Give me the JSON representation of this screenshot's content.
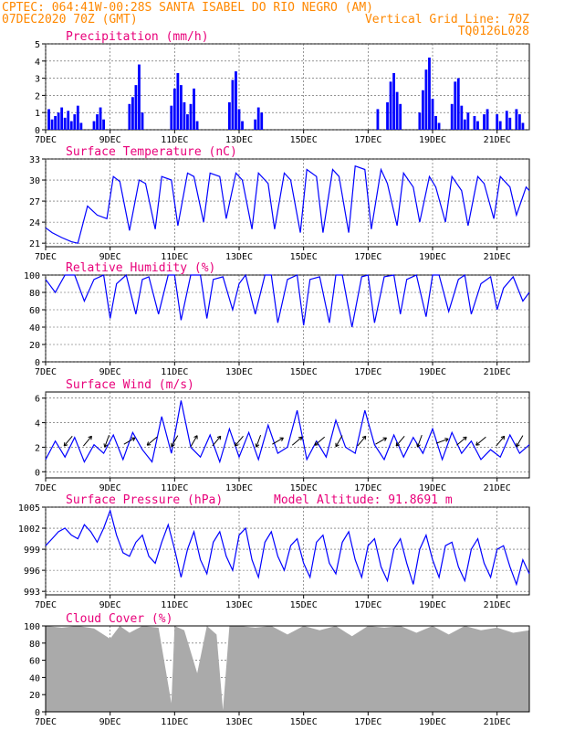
{
  "header": {
    "line1": "CPTEC:   064:41W-00:28S  SANTA ISABEL DO RIO NEGRO (AM)",
    "line2_left": "07DEC2020 70Z (GMT)",
    "line2_right": "Vertical Grid Line: 70Z",
    "line3_right": "TQ0126L028"
  },
  "colors": {
    "header": "#ff8800",
    "panel_title": "#e8007a",
    "series": "#0000ff",
    "bars": "#0000ff",
    "cloud": "#aaaaaa",
    "grid": "#555555"
  },
  "x_axis": {
    "ticks": [
      "7DEC",
      "9DEC",
      "11DEC",
      "13DEC",
      "15DEC",
      "17DEC",
      "19DEC",
      "21DEC"
    ],
    "day_start": 7,
    "day_end": 22
  },
  "chart_data": [
    {
      "type": "bar",
      "title": "Precipitation (mm/h)",
      "ylim": [
        0,
        5
      ],
      "yticks": [
        "0",
        "1",
        "2",
        "3",
        "4",
        "5"
      ],
      "x": [
        7.1,
        7.2,
        7.3,
        7.4,
        7.5,
        7.6,
        7.7,
        7.8,
        7.9,
        8.0,
        8.1,
        8.5,
        8.6,
        8.7,
        8.8,
        9.6,
        9.7,
        9.8,
        9.9,
        10.0,
        10.9,
        11.0,
        11.1,
        11.2,
        11.3,
        11.4,
        11.5,
        11.6,
        11.7,
        12.7,
        12.8,
        12.9,
        13.0,
        13.1,
        13.5,
        13.6,
        13.7,
        17.3,
        17.6,
        17.7,
        17.8,
        17.9,
        18.0,
        18.6,
        18.7,
        18.8,
        18.9,
        19.0,
        19.1,
        19.2,
        19.6,
        19.7,
        19.8,
        19.9,
        20.0,
        20.1,
        20.3,
        20.4,
        20.6,
        20.7,
        21.0,
        21.1,
        21.3,
        21.4,
        21.6,
        21.7,
        21.8
      ],
      "values": [
        1.2,
        0.6,
        0.8,
        1.0,
        1.3,
        0.7,
        1.1,
        0.5,
        0.9,
        1.4,
        0.4,
        0.5,
        0.9,
        1.3,
        0.6,
        1.5,
        1.9,
        2.6,
        3.8,
        1.0,
        1.4,
        2.4,
        3.3,
        2.6,
        1.6,
        0.9,
        1.5,
        2.4,
        0.5,
        1.6,
        2.9,
        3.4,
        1.2,
        0.5,
        0.6,
        1.3,
        1.0,
        1.2,
        1.6,
        2.8,
        3.3,
        2.2,
        1.5,
        1.0,
        2.3,
        3.5,
        4.2,
        1.8,
        0.8,
        0.4,
        1.5,
        2.8,
        3.0,
        1.4,
        0.6,
        1.0,
        0.8,
        0.5,
        0.9,
        1.2,
        0.9,
        0.5,
        1.1,
        0.7,
        1.2,
        0.9,
        0.4
      ]
    },
    {
      "type": "line",
      "title": "Surface Temperature (nC)",
      "ylim": [
        20.5,
        33
      ],
      "yticks": [
        "21",
        "24",
        "27",
        "30",
        "33"
      ],
      "x": [
        7.0,
        7.2,
        7.5,
        7.8,
        8.0,
        8.3,
        8.6,
        8.9,
        9.1,
        9.3,
        9.6,
        9.9,
        10.1,
        10.4,
        10.6,
        10.9,
        11.1,
        11.4,
        11.6,
        11.9,
        12.1,
        12.4,
        12.6,
        12.9,
        13.1,
        13.4,
        13.6,
        13.9,
        14.1,
        14.4,
        14.6,
        14.9,
        15.1,
        15.4,
        15.6,
        15.9,
        16.1,
        16.4,
        16.6,
        16.9,
        17.1,
        17.4,
        17.6,
        17.9,
        18.1,
        18.4,
        18.6,
        18.9,
        19.1,
        19.4,
        19.6,
        19.9,
        20.1,
        20.4,
        20.6,
        20.9,
        21.1,
        21.4,
        21.6,
        21.9,
        22.0
      ],
      "values": [
        23.2,
        22.5,
        21.8,
        21.2,
        21.0,
        26.3,
        25.0,
        24.5,
        30.5,
        29.8,
        22.8,
        30.0,
        29.5,
        23.0,
        30.5,
        30.0,
        23.5,
        31.0,
        30.5,
        24.0,
        31.0,
        30.5,
        24.5,
        31.0,
        30.0,
        23.0,
        31.0,
        29.5,
        23.0,
        31.0,
        30.0,
        22.5,
        31.5,
        30.5,
        22.5,
        31.5,
        30.5,
        22.5,
        32.0,
        31.5,
        23.0,
        31.5,
        29.5,
        23.5,
        31.0,
        29.0,
        24.0,
        30.5,
        29.0,
        24.0,
        30.5,
        28.5,
        23.5,
        30.5,
        29.5,
        24.5,
        30.5,
        29.0,
        25.0,
        29.0,
        28.5
      ]
    },
    {
      "type": "line",
      "title": "Relative Humidity (%)",
      "ylim": [
        0,
        100
      ],
      "yticks": [
        "0",
        "20",
        "40",
        "60",
        "80",
        "100"
      ],
      "x": [
        7.0,
        7.3,
        7.6,
        7.9,
        8.2,
        8.5,
        8.8,
        9.0,
        9.2,
        9.5,
        9.8,
        10.0,
        10.2,
        10.5,
        10.8,
        11.0,
        11.2,
        11.5,
        11.8,
        12.0,
        12.2,
        12.5,
        12.8,
        13.0,
        13.2,
        13.5,
        13.8,
        14.0,
        14.2,
        14.5,
        14.8,
        15.0,
        15.2,
        15.5,
        15.8,
        16.0,
        16.2,
        16.5,
        16.8,
        17.0,
        17.2,
        17.5,
        17.8,
        18.0,
        18.2,
        18.5,
        18.8,
        19.0,
        19.2,
        19.5,
        19.8,
        20.0,
        20.2,
        20.5,
        20.8,
        21.0,
        21.2,
        21.5,
        21.8,
        22.0
      ],
      "values": [
        95,
        80,
        100,
        100,
        70,
        95,
        100,
        50,
        90,
        100,
        55,
        95,
        98,
        55,
        100,
        100,
        48,
        100,
        100,
        50,
        95,
        98,
        60,
        90,
        100,
        55,
        100,
        100,
        45,
        95,
        100,
        42,
        95,
        98,
        45,
        100,
        100,
        40,
        98,
        100,
        45,
        98,
        100,
        55,
        95,
        100,
        52,
        100,
        100,
        58,
        95,
        100,
        55,
        90,
        98,
        60,
        85,
        98,
        70,
        80
      ]
    },
    {
      "type": "line",
      "title": "Surface Wind (m/s)",
      "ylim": [
        -0.5,
        6.5
      ],
      "yticks": [
        "0",
        "2",
        "4",
        "6"
      ],
      "x": [
        7.0,
        7.3,
        7.6,
        7.9,
        8.2,
        8.5,
        8.8,
        9.1,
        9.4,
        9.7,
        10.0,
        10.3,
        10.6,
        10.9,
        11.2,
        11.5,
        11.8,
        12.1,
        12.4,
        12.7,
        13.0,
        13.3,
        13.6,
        13.9,
        14.2,
        14.5,
        14.8,
        15.1,
        15.4,
        15.7,
        16.0,
        16.3,
        16.6,
        16.9,
        17.2,
        17.5,
        17.8,
        18.1,
        18.4,
        18.7,
        19.0,
        19.3,
        19.6,
        19.9,
        20.2,
        20.5,
        20.8,
        21.1,
        21.4,
        21.7,
        22.0
      ],
      "values": [
        1.0,
        2.5,
        1.2,
        2.8,
        0.8,
        2.2,
        1.5,
        3.0,
        1.0,
        3.2,
        1.8,
        0.8,
        4.5,
        1.5,
        5.8,
        2.0,
        1.2,
        3.0,
        0.8,
        3.5,
        1.2,
        3.2,
        1.0,
        3.8,
        1.5,
        2.0,
        5.0,
        1.0,
        2.5,
        1.2,
        4.2,
        2.0,
        1.5,
        5.0,
        2.2,
        1.0,
        3.0,
        1.2,
        2.8,
        1.5,
        3.5,
        1.0,
        3.2,
        1.5,
        2.5,
        1.0,
        1.8,
        1.2,
        3.0,
        1.5,
        2.2
      ],
      "arrows": [
        {
          "x": 7.7,
          "dir": 220
        },
        {
          "x": 8.3,
          "dir": 40
        },
        {
          "x": 8.9,
          "dir": 200
        },
        {
          "x": 9.6,
          "dir": 60
        },
        {
          "x": 10.3,
          "dir": 230
        },
        {
          "x": 11.0,
          "dir": 210
        },
        {
          "x": 11.6,
          "dir": 30
        },
        {
          "x": 12.3,
          "dir": 40
        },
        {
          "x": 13.0,
          "dir": 220
        },
        {
          "x": 13.6,
          "dir": 200
        },
        {
          "x": 14.2,
          "dir": 60
        },
        {
          "x": 14.8,
          "dir": 50
        },
        {
          "x": 15.5,
          "dir": 230
        },
        {
          "x": 16.1,
          "dir": 210
        },
        {
          "x": 16.8,
          "dir": 40
        },
        {
          "x": 17.4,
          "dir": 60
        },
        {
          "x": 18.0,
          "dir": 220
        },
        {
          "x": 18.6,
          "dir": 200
        },
        {
          "x": 19.3,
          "dir": 70
        },
        {
          "x": 19.9,
          "dir": 50
        },
        {
          "x": 20.5,
          "dir": 230
        },
        {
          "x": 21.1,
          "dir": 40
        },
        {
          "x": 21.7,
          "dir": 210
        }
      ]
    },
    {
      "type": "line",
      "title": "Surface Pressure (hPa)",
      "annotation": "Model Altitude: 91.8691 m",
      "ylim": [
        992.5,
        1005
      ],
      "yticks": [
        "993",
        "996",
        "999",
        "1002",
        "1005"
      ],
      "x": [
        7.0,
        7.2,
        7.4,
        7.6,
        7.8,
        8.0,
        8.2,
        8.4,
        8.6,
        8.8,
        9.0,
        9.2,
        9.4,
        9.6,
        9.8,
        10.0,
        10.2,
        10.4,
        10.6,
        10.8,
        11.0,
        11.2,
        11.4,
        11.6,
        11.8,
        12.0,
        12.2,
        12.4,
        12.6,
        12.8,
        13.0,
        13.2,
        13.4,
        13.6,
        13.8,
        14.0,
        14.2,
        14.4,
        14.6,
        14.8,
        15.0,
        15.2,
        15.4,
        15.6,
        15.8,
        16.0,
        16.2,
        16.4,
        16.6,
        16.8,
        17.0,
        17.2,
        17.4,
        17.6,
        17.8,
        18.0,
        18.2,
        18.4,
        18.6,
        18.8,
        19.0,
        19.2,
        19.4,
        19.6,
        19.8,
        20.0,
        20.2,
        20.4,
        20.6,
        20.8,
        21.0,
        21.2,
        21.4,
        21.6,
        21.8,
        22.0
      ],
      "values": [
        999.5,
        1000.5,
        1001.5,
        1002.0,
        1001.0,
        1000.5,
        1002.5,
        1001.5,
        1000.0,
        1002.0,
        1004.5,
        1001.0,
        998.5,
        998.0,
        1000.0,
        1001.0,
        998.0,
        997.0,
        1000.0,
        1002.5,
        999.0,
        995.0,
        999.0,
        1001.5,
        997.5,
        995.5,
        1000.0,
        1001.5,
        998.0,
        996.0,
        1001.0,
        1002.0,
        997.5,
        995.0,
        1000.0,
        1001.5,
        998.0,
        996.0,
        999.5,
        1000.5,
        997.0,
        995.0,
        1000.0,
        1001.0,
        997.0,
        995.5,
        1000.0,
        1001.5,
        997.5,
        995.0,
        999.5,
        1000.5,
        996.5,
        994.5,
        999.0,
        1000.5,
        997.0,
        994.0,
        999.0,
        1001.0,
        997.5,
        995.0,
        999.5,
        1000.0,
        996.5,
        994.5,
        999.0,
        1000.5,
        997.0,
        995.0,
        999.0,
        999.5,
        996.5,
        994.0,
        997.5,
        995.5
      ]
    },
    {
      "type": "area",
      "title": "Cloud Cover (%)",
      "ylim": [
        0,
        100
      ],
      "yticks": [
        "0",
        "20",
        "40",
        "60",
        "80",
        "100"
      ],
      "x": [
        7.0,
        7.5,
        8.0,
        8.5,
        9.0,
        9.3,
        9.6,
        10.0,
        10.5,
        10.9,
        11.0,
        11.3,
        11.7,
        12.0,
        12.3,
        12.5,
        12.7,
        13.0,
        13.5,
        14.0,
        14.5,
        15.0,
        15.5,
        16.0,
        16.5,
        17.0,
        17.5,
        18.0,
        18.5,
        19.0,
        19.5,
        20.0,
        20.5,
        21.0,
        21.5,
        22.0
      ],
      "values": [
        100,
        98,
        100,
        97,
        85,
        100,
        92,
        100,
        98,
        10,
        100,
        95,
        45,
        100,
        90,
        2,
        100,
        100,
        98,
        100,
        90,
        100,
        95,
        100,
        88,
        100,
        98,
        100,
        92,
        100,
        90,
        100,
        95,
        98,
        92,
        95
      ]
    }
  ]
}
